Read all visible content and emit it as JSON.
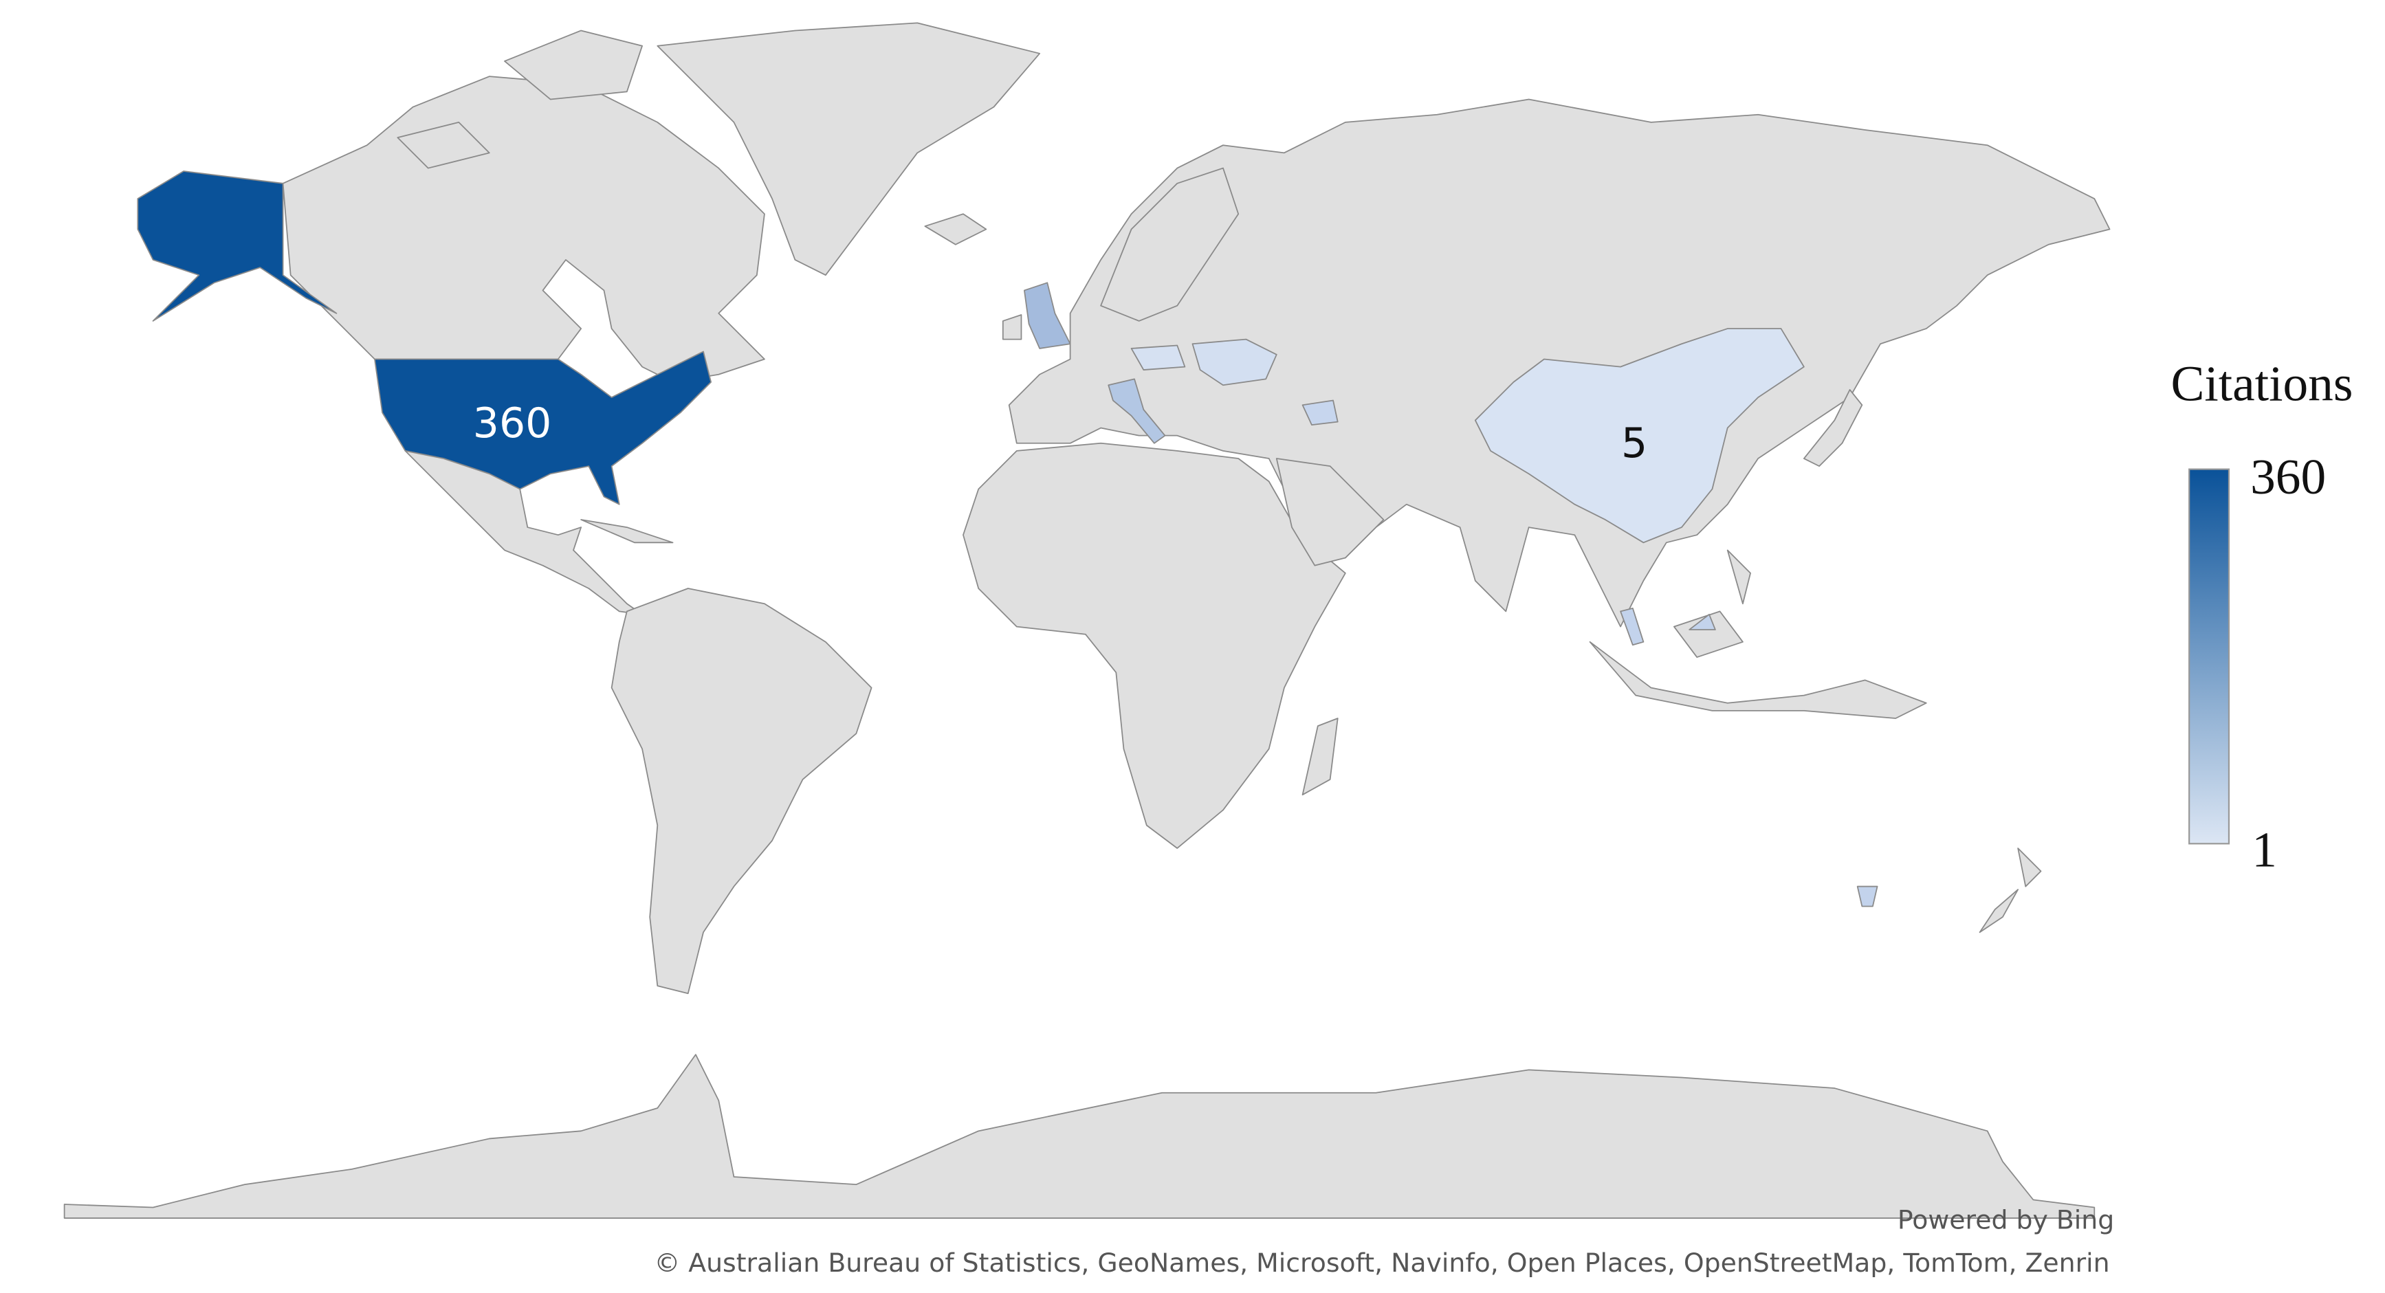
{
  "legend": {
    "title": "Citations",
    "max_label": "360",
    "min_label": "1",
    "max_value": 360,
    "min_value": 1,
    "color_max": "#0a5299",
    "color_min": "#dce6f4"
  },
  "map": {
    "land_color": "#e0e0e0",
    "border_color": "#8a8a8a",
    "data_labels": [
      {
        "region": "United States",
        "value": 360,
        "text": "360"
      },
      {
        "region": "China",
        "value": 5,
        "text": "5"
      }
    ],
    "highlighted_colors": {
      "united_states": "#0a5299",
      "united_kingdom": "#a4bbdd",
      "italy": "#b3c7e4",
      "ukraine": "#d3dff1",
      "central_europe": "#d6e1f2",
      "caucasus": "#c7d6ee",
      "china": "#d8e3f3",
      "malaysia": "#c3d3ec",
      "tasmania": "#c3d3ec"
    }
  },
  "attribution": {
    "powered_by": "Powered by Bing",
    "copyright": "© Australian Bureau of Statistics, GeoNames, Microsoft, Navinfo, Open Places, OpenStreetMap, TomTom, Zenrin"
  }
}
